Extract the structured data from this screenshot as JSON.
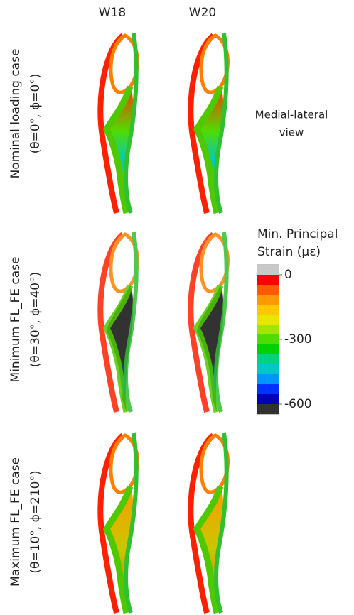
{
  "columns": [
    "W18",
    "W20"
  ],
  "rows": [
    {
      "title": "Nominal loading case",
      "angles": "(θ=0°, ϕ=0°)"
    },
    {
      "title": "Minimum FL_FE case",
      "angles": "(θ=30°, ϕ=40°)"
    },
    {
      "title": "Maximum FL_FE case",
      "angles": "(θ=10°, ϕ=210°)"
    }
  ],
  "view_label": [
    "Medial-lateral",
    "view"
  ],
  "legend": {
    "title": [
      "Min. Principal",
      "Strain (με)"
    ],
    "ticks": [
      0,
      -300,
      -600
    ],
    "colors": [
      "#c8c8c8",
      "#ff0000",
      "#ff5a00",
      "#ff9900",
      "#ffc800",
      "#e6e600",
      "#a0e600",
      "#50dc00",
      "#00d200",
      "#00d27d",
      "#00c8c8",
      "#0096ff",
      "#0032ff",
      "#0000b4",
      "#323232"
    ]
  }
}
